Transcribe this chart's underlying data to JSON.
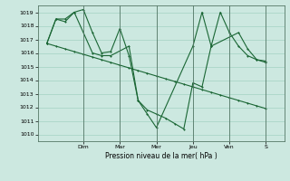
{
  "xlabel": "Pression niveau de la mer( hPa )",
  "bg_color": "#cce8e0",
  "grid_color": "#99ccbb",
  "line_color": "#1a6634",
  "ylim": [
    1009.5,
    1019.5
  ],
  "yticks": [
    1010,
    1011,
    1012,
    1013,
    1014,
    1015,
    1016,
    1017,
    1018,
    1019
  ],
  "day_labels": [
    "Dim",
    "Mar",
    "Mer",
    "Jeu",
    "Ven",
    "S"
  ],
  "day_positions": [
    2.0,
    4.0,
    6.0,
    8.0,
    10.0,
    12.0
  ],
  "xlim": [
    -0.5,
    13.0
  ],
  "series1_x": [
    0,
    0.5,
    1.0,
    1.5,
    2.0,
    2.5,
    3.0,
    3.5,
    4.0,
    4.5,
    5.0,
    5.5,
    6.0,
    6.5,
    7.0,
    7.5,
    8.0,
    8.5,
    9.0,
    9.5,
    10.0,
    10.5,
    11.0,
    11.5,
    12.0
  ],
  "series1_y": [
    1016.7,
    1016.5,
    1016.3,
    1016.1,
    1015.9,
    1015.7,
    1015.5,
    1015.3,
    1015.1,
    1014.9,
    1014.7,
    1014.5,
    1014.3,
    1014.1,
    1013.9,
    1013.7,
    1013.5,
    1013.3,
    1013.1,
    1012.9,
    1012.7,
    1012.5,
    1012.3,
    1012.1,
    1011.9
  ],
  "series2_x": [
    0,
    0.5,
    1.0,
    1.5,
    2.0,
    2.5,
    3.0,
    3.5,
    4.0,
    4.5,
    5.0,
    5.5,
    6.0,
    6.5,
    7.0,
    7.5,
    8.0,
    8.5,
    9.0,
    9.5,
    10.0,
    10.5,
    11.0,
    11.5,
    12.0
  ],
  "series2_y": [
    1016.7,
    1018.5,
    1018.3,
    1019.0,
    1019.2,
    1017.5,
    1016.0,
    1016.1,
    1017.8,
    1015.8,
    1012.5,
    1011.8,
    1011.5,
    1011.2,
    1010.8,
    1010.4,
    1013.8,
    1013.5,
    1016.5,
    1019.0,
    1017.5,
    1016.5,
    1015.8,
    1015.5,
    1015.4
  ],
  "series3_x": [
    0,
    0.5,
    1.0,
    1.5,
    2.5,
    3.0,
    3.5,
    4.5,
    5.0,
    5.5,
    6.0,
    8.0,
    8.5,
    9.0,
    10.5,
    11.0,
    11.5,
    12.0
  ],
  "series3_y": [
    1016.7,
    1018.5,
    1018.5,
    1019.0,
    1016.0,
    1015.8,
    1015.8,
    1016.5,
    1012.5,
    1011.5,
    1010.5,
    1016.5,
    1019.0,
    1016.5,
    1017.5,
    1016.3,
    1015.5,
    1015.3
  ]
}
